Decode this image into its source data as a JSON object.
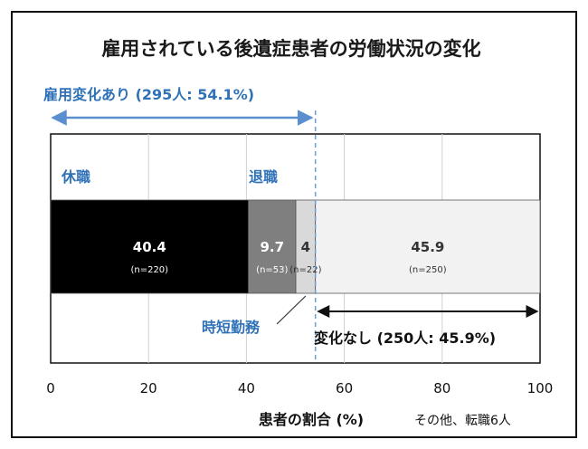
{
  "chart_data": {
    "type": "bar",
    "orientation": "horizontal-stacked",
    "title": "雇用されている後遺症患者の労働状況の変化",
    "xlabel": "患者の割合 (%)",
    "xlim": [
      0,
      100
    ],
    "xticks": [
      "0",
      "20",
      "40",
      "60",
      "80",
      "100"
    ],
    "grid": true,
    "segments": [
      {
        "name": "休職",
        "value": 40.4,
        "value_label": "40.4",
        "n_label": "(n=220)",
        "color": "#000000",
        "text_color": "#ffffff"
      },
      {
        "name": "退職",
        "value": 9.7,
        "value_label": "9.7",
        "n_label": "(n=53)",
        "color": "#7f7f7f",
        "text_color": "#ffffff"
      },
      {
        "name": "時短勤務",
        "value": 4,
        "value_label": "4",
        "n_label": "(n=22)",
        "color": "#d9d9d9",
        "text_color": "#333333"
      },
      {
        "name": "",
        "value": 45.9,
        "value_label": "45.9",
        "n_label": "(n=250)",
        "color": "#f2f2f2",
        "text_color": "#333333"
      }
    ],
    "annotations": {
      "changed": "雇用変化あり (295人: 54.1%)",
      "changed_range": [
        0,
        54.1
      ],
      "unchanged": "変化なし (250人: 45.9%)",
      "unchanged_range": [
        54.1,
        100
      ],
      "divider_at": 54.1,
      "other_note": "その他、転職6人"
    },
    "colors": {
      "accent_blue": "#2f72b8",
      "arrow_blue": "#5b8fcf",
      "dashed_line": "#6a9fd4"
    }
  }
}
